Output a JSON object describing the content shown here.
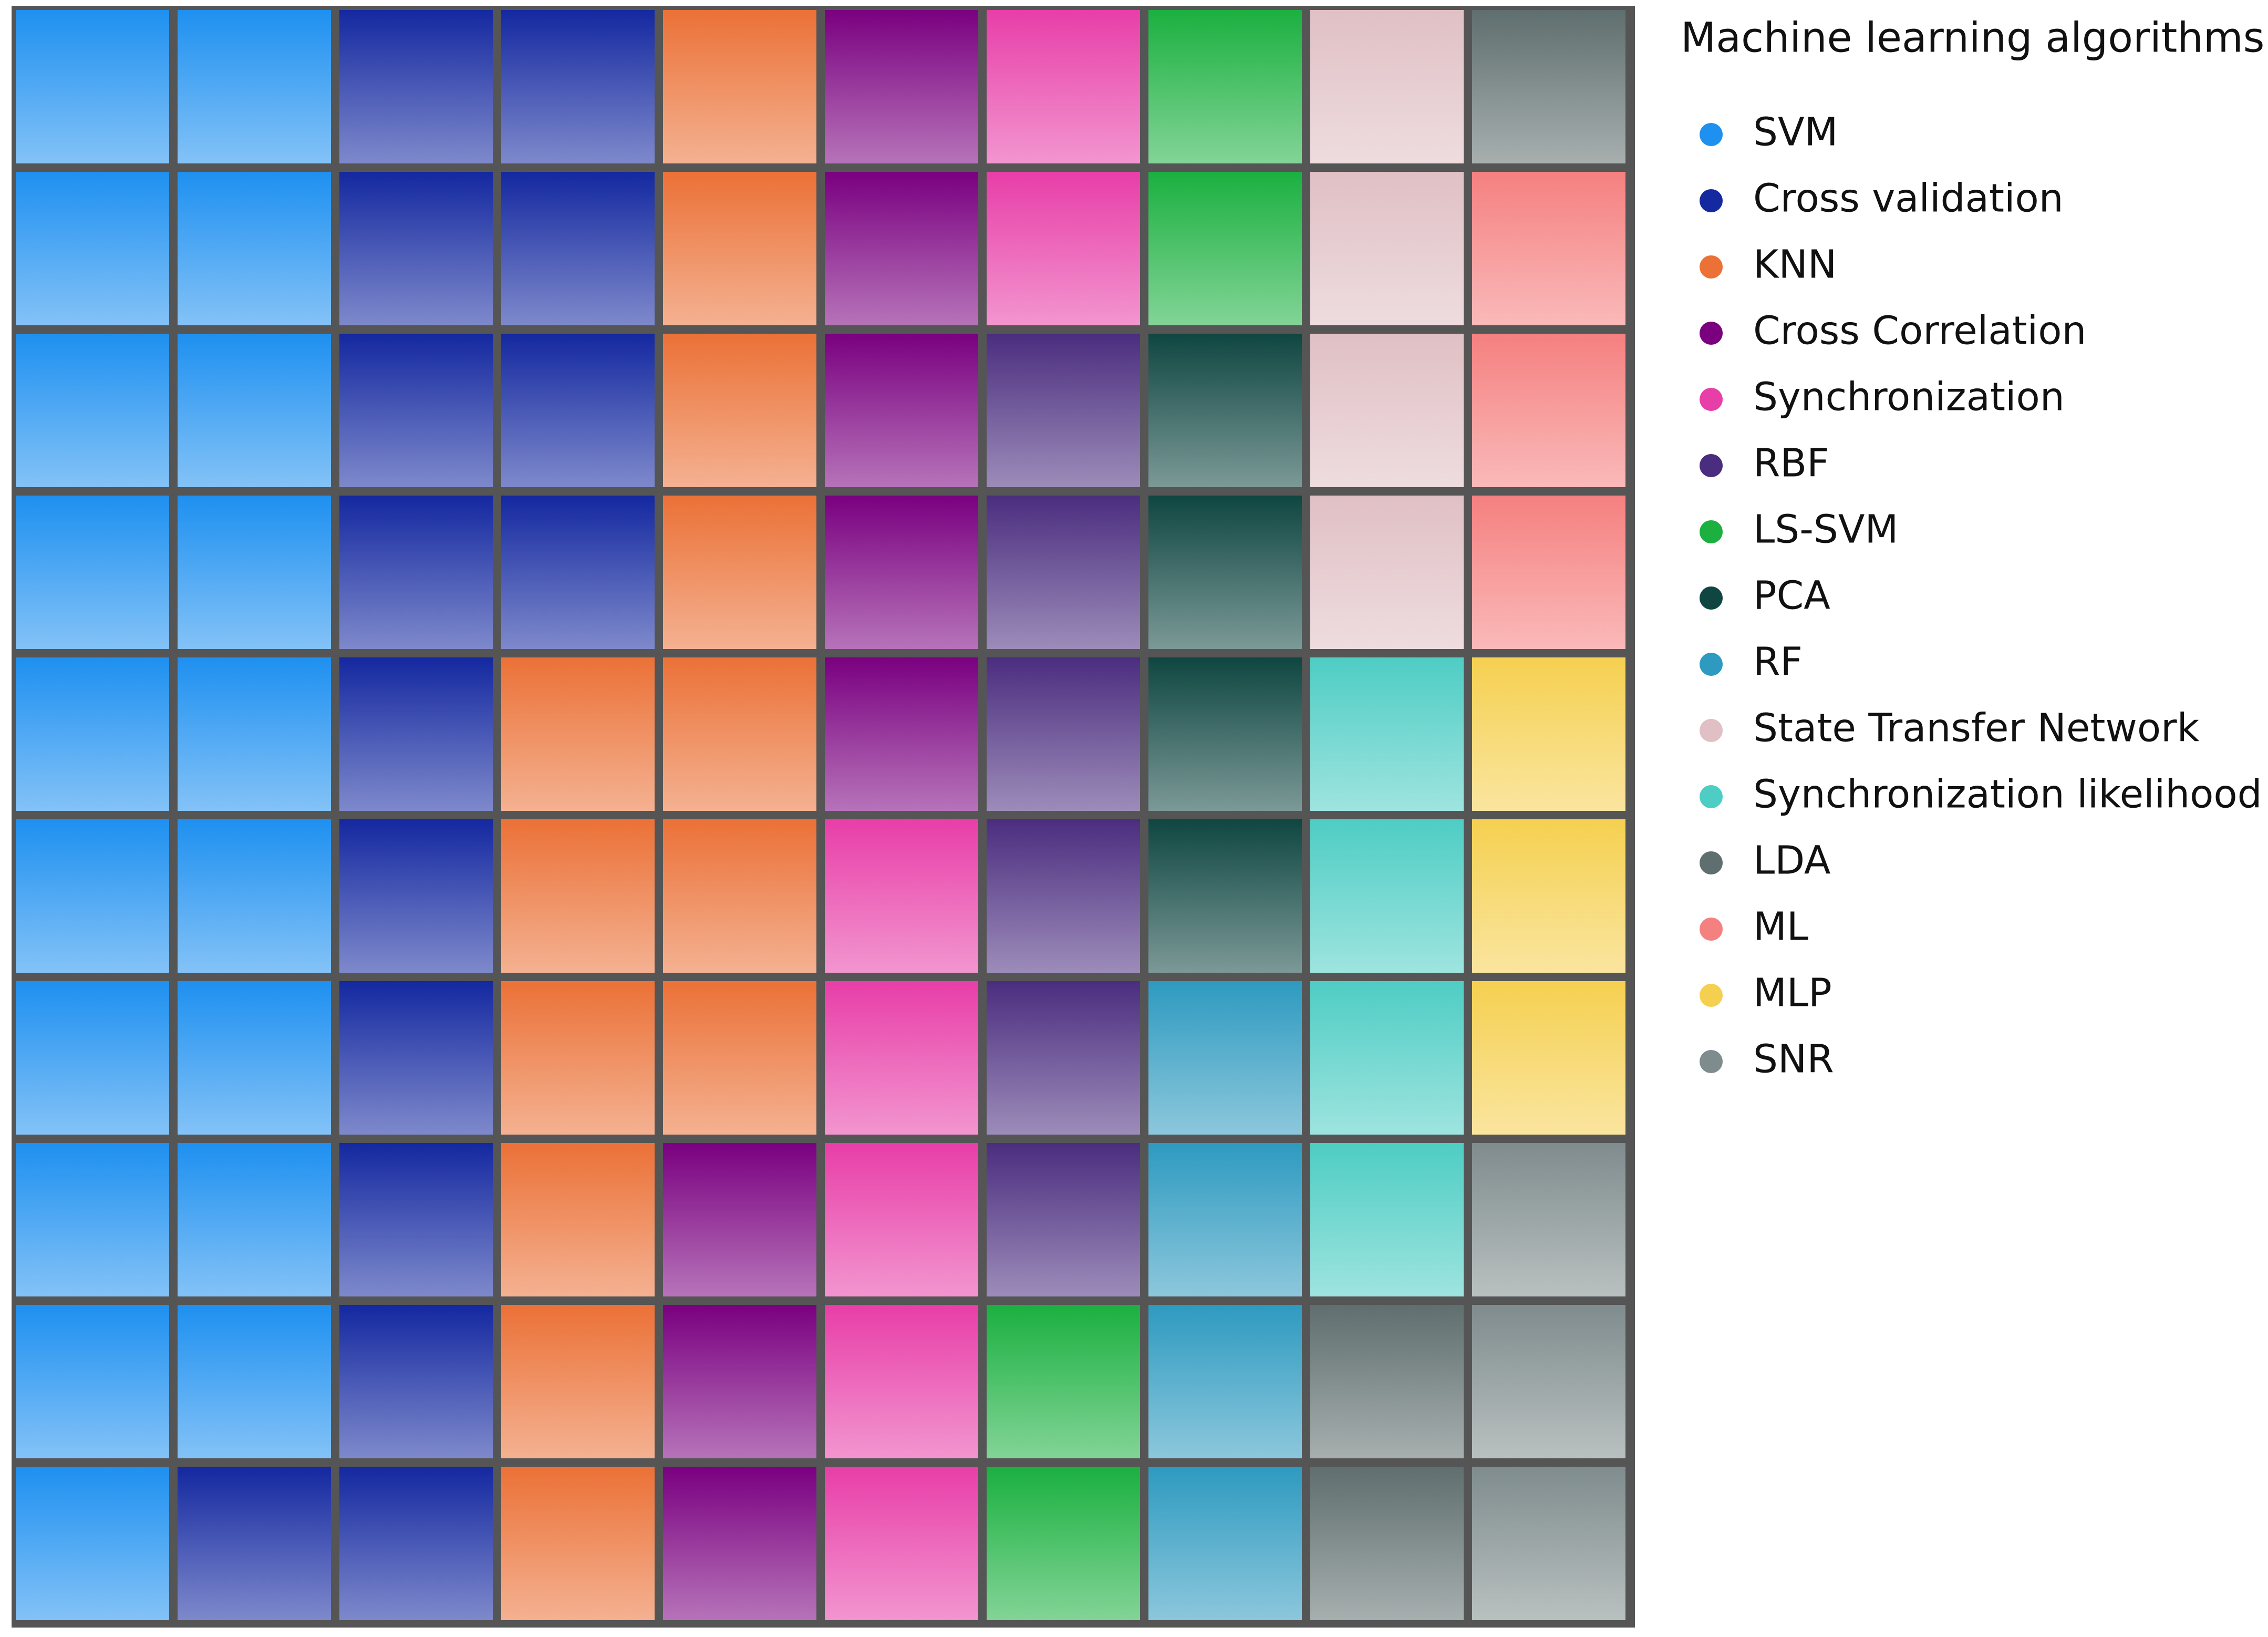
{
  "chart_data": {
    "type": "waffle",
    "legend_title": "Machine learning algorithms",
    "legend": "right",
    "rows": 10,
    "columns": 10,
    "series": [
      {
        "name": "SVM",
        "color": "#1e90f0",
        "values": [
          19
        ]
      },
      {
        "name": "Cross validation",
        "color": "#1428a0",
        "values": [
          15
        ]
      },
      {
        "name": "KNN",
        "color": "#eb7137",
        "values": [
          13
        ]
      },
      {
        "name": "Cross Correlation",
        "color": "#7a0080",
        "values": [
          8
        ]
      },
      {
        "name": "Synchronization",
        "color": "#e83ea8",
        "values": [
          7
        ]
      },
      {
        "name": "RBF",
        "color": "#4b2d7f",
        "values": [
          6
        ]
      },
      {
        "name": "LS-SVM",
        "color": "#1bb040",
        "values": [
          4
        ]
      },
      {
        "name": "PCA",
        "color": "#0f4641",
        "values": [
          4
        ]
      },
      {
        "name": "RF",
        "color": "#2e9ac0",
        "values": [
          4
        ]
      },
      {
        "name": "State Transfer Network",
        "color": "#e0c0c4",
        "values": [
          4
        ]
      },
      {
        "name": "Synchronization likelihood",
        "color": "#4ecdc4",
        "values": [
          4
        ]
      },
      {
        "name": "LDA",
        "color": "#5f6e6e",
        "values": [
          3
        ]
      },
      {
        "name": "ML",
        "color": "#f58080",
        "values": [
          3
        ]
      },
      {
        "name": "MLP",
        "color": "#f5d050",
        "values": [
          3
        ]
      },
      {
        "name": "SNR",
        "color": "#7f8c8d",
        "values": [
          3
        ]
      }
    ]
  }
}
